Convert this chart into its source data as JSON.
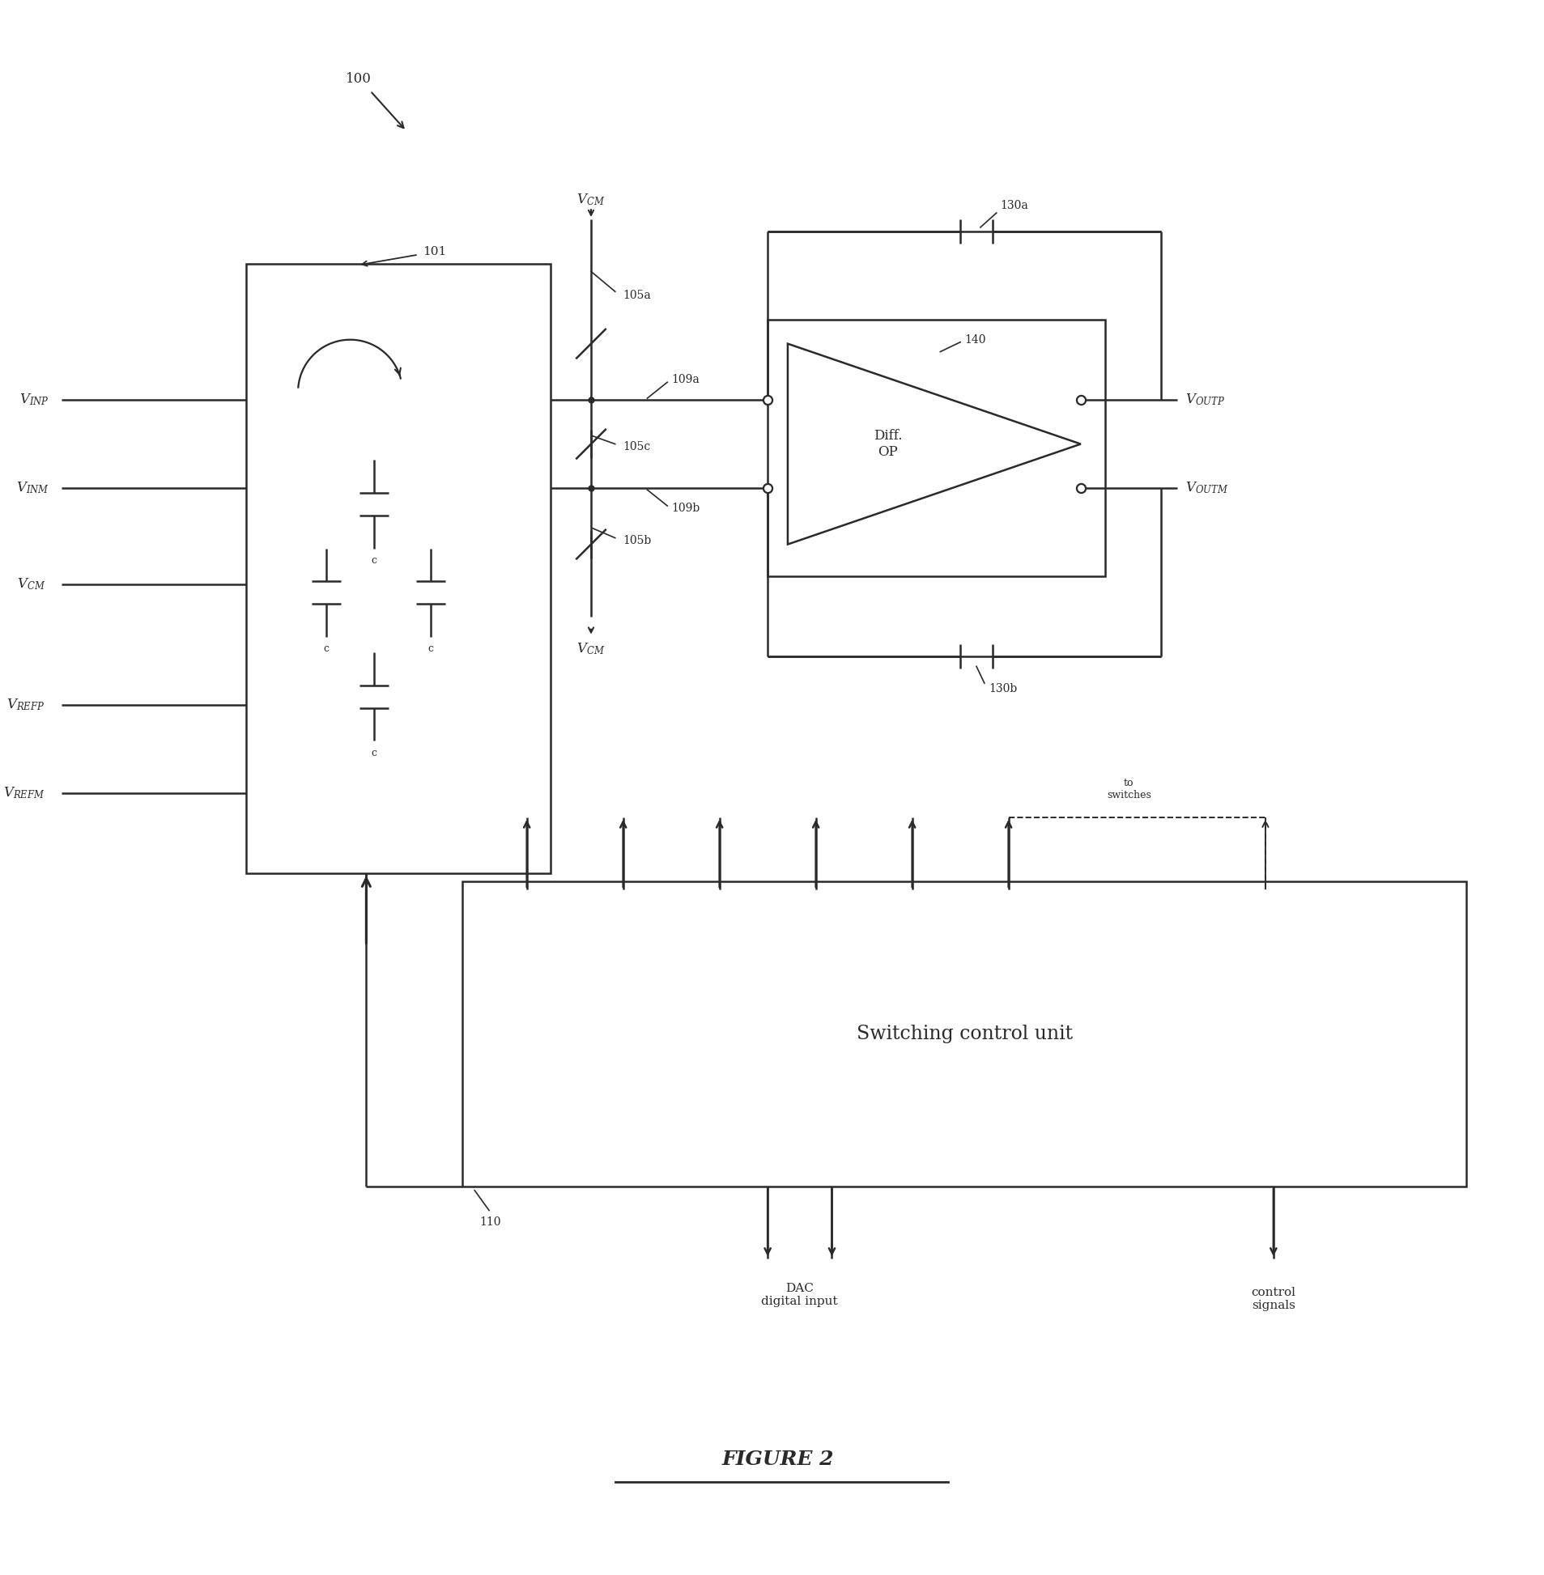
{
  "fig_width": 19.07,
  "fig_height": 19.46,
  "bg_color": "#ffffff",
  "lc": "#2a2a2a",
  "lw": 1.8,
  "title": "FIGURE 2",
  "ref100": "100",
  "ref101": "101",
  "ref105a": "105a",
  "ref105b": "105b",
  "ref105c": "105c",
  "ref109a": "109a",
  "ref109b": "109b",
  "ref110": "110",
  "ref130a": "130a",
  "ref130b": "130b",
  "ref140": "140",
  "lbl_VINP": "VINP",
  "lbl_VINM": "VINM",
  "lbl_VCM": "VCM",
  "lbl_VREFP": "VREFP",
  "lbl_VREFM": "VREFM",
  "lbl_VOUTP": "VOUTP",
  "lbl_VOUTM": "VOUTM",
  "lbl_to_switches": "to\nswitches",
  "lbl_DAC": "DAC\ndigital input",
  "lbl_ctrl": "control\nsignals",
  "lbl_scu": "Switching control unit",
  "lbl_diffop": "Diff.\nOP",
  "lbl_C": "c"
}
